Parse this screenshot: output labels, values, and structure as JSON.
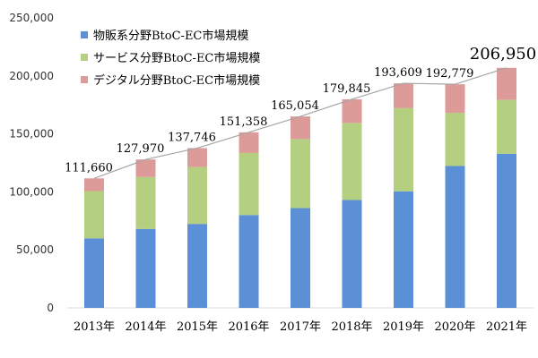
{
  "chart_data": {
    "type": "bar",
    "stacked": true,
    "categories": [
      "2013年",
      "2014年",
      "2015年",
      "2016年",
      "2017年",
      "2018年",
      "2019年",
      "2020年",
      "2021年"
    ],
    "series": [
      {
        "name": "物販系分野BtoC-EC市場規模",
        "color": "#5b8fd6",
        "values": [
          59931,
          68043,
          72398,
          80043,
          86008,
          92992,
          100515,
          122333,
          132865
        ]
      },
      {
        "name": "サービス分野BtoC-EC市場規模",
        "color": "#b3cf7f",
        "values": [
          40745,
          44816,
          49014,
          53532,
          59568,
          66471,
          71672,
          45832,
          46424
        ]
      },
      {
        "name": "デジタル分野BtoC-EC市場規模",
        "color": "#dc9a98",
        "values": [
          10984,
          15111,
          16334,
          17783,
          19478,
          20382,
          21422,
          24614,
          27661
        ]
      }
    ],
    "totals": [
      111660,
      127970,
      137746,
      151358,
      165054,
      179845,
      193609,
      192779,
      206950
    ],
    "total_labels": [
      "111,660",
      "127,970",
      "137,746",
      "151,358",
      "165,054",
      "179,845",
      "193,609",
      "192,779",
      "206,950"
    ],
    "y_ticks": [
      "0",
      "50,000",
      "100,000",
      "150,000",
      "200,000",
      "250,000"
    ],
    "ylim": [
      0,
      250000
    ],
    "legend_position": "top-left",
    "grid": false,
    "total_line_color": "#a6a6a6"
  }
}
